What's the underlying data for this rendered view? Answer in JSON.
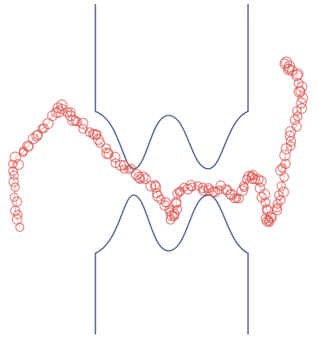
{
  "colors": {
    "background": "#ffffff",
    "channel_wall": "#4a5a8a",
    "trajectory_marker": "#d9544f"
  }
}
